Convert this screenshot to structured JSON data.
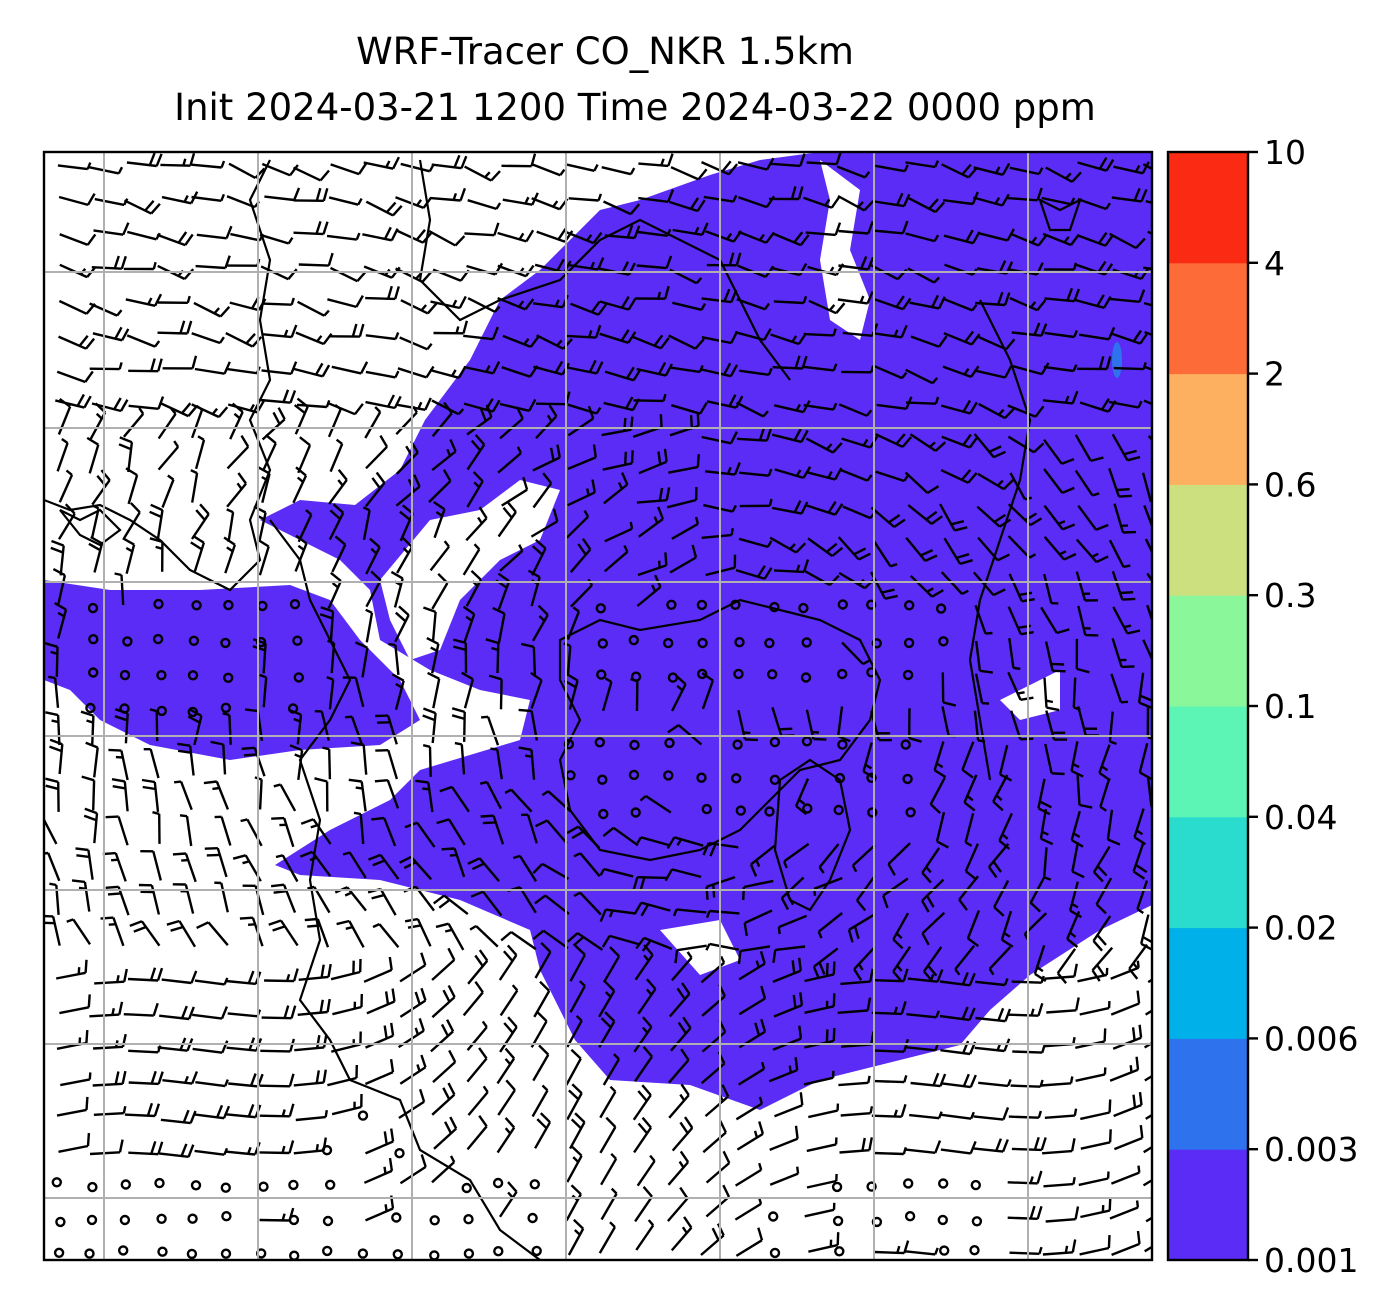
{
  "title_line1": "WRF-Tracer CO_NKR 1.5km",
  "title_line2": "Init 2024-03-21 1200 Time 2024-03-22 0000 ppm",
  "colorbar": {
    "levels": [
      "0.001",
      "0.003",
      "0.006",
      "0.02",
      "0.04",
      "0.1",
      "0.3",
      "0.6",
      "2",
      "4",
      "10"
    ],
    "colors": [
      "#5b2cf6",
      "#2e72ee",
      "#00b0e8",
      "#2adcce",
      "#5cf5b6",
      "#8af79a",
      "#cde080",
      "#fdb060",
      "#fd6c38",
      "#fb2a12"
    ]
  },
  "map": {
    "tracer_fill_color": "#5b2cf6",
    "grid_color": "#b0b0b0",
    "barb_color": "#000000"
  }
}
